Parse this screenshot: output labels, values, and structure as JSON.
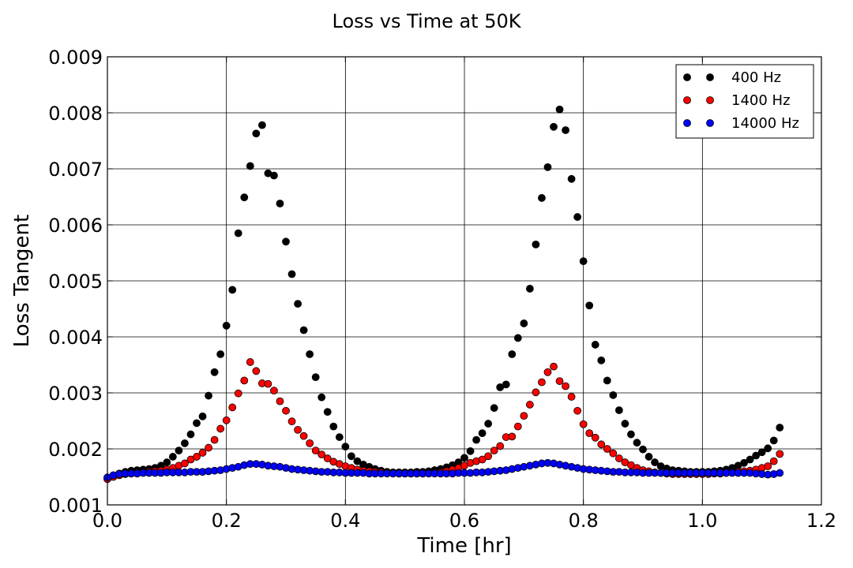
{
  "chart_data": {
    "type": "scatter",
    "title": "Loss vs Time at 50K",
    "xlabel": "Time [hr]",
    "ylabel": "Loss Tangent",
    "xlim": [
      0.0,
      1.2
    ],
    "ylim": [
      0.001,
      0.009
    ],
    "xticks": [
      "0.0",
      "0.2",
      "0.4",
      "0.6",
      "0.8",
      "1.0",
      "1.2"
    ],
    "yticks": [
      "0.001",
      "0.002",
      "0.003",
      "0.004",
      "0.005",
      "0.006",
      "0.007",
      "0.008",
      "0.009"
    ],
    "grid": true,
    "legend": "top-right",
    "series": [
      {
        "name": "400 Hz",
        "color": "#000000",
        "x": [
          0.0,
          0.01,
          0.02,
          0.03,
          0.04,
          0.05,
          0.06,
          0.07,
          0.08,
          0.09,
          0.1,
          0.11,
          0.12,
          0.13,
          0.14,
          0.15,
          0.16,
          0.17,
          0.18,
          0.19,
          0.2,
          0.21,
          0.22,
          0.23,
          0.24,
          0.25,
          0.26,
          0.27,
          0.28,
          0.29,
          0.3,
          0.31,
          0.32,
          0.33,
          0.34,
          0.35,
          0.36,
          0.37,
          0.38,
          0.39,
          0.4,
          0.41,
          0.42,
          0.43,
          0.44,
          0.45,
          0.46,
          0.47,
          0.48,
          0.49,
          0.5,
          0.51,
          0.52,
          0.53,
          0.54,
          0.55,
          0.56,
          0.57,
          0.58,
          0.59,
          0.6,
          0.61,
          0.62,
          0.63,
          0.64,
          0.65,
          0.66,
          0.67,
          0.68,
          0.69,
          0.7,
          0.71,
          0.72,
          0.73,
          0.74,
          0.75,
          0.76,
          0.77,
          0.78,
          0.79,
          0.8,
          0.81,
          0.82,
          0.83,
          0.84,
          0.85,
          0.86,
          0.87,
          0.88,
          0.89,
          0.9,
          0.91,
          0.92,
          0.93,
          0.94,
          0.95,
          0.96,
          0.97,
          0.98,
          0.99,
          1.0,
          1.01,
          1.02,
          1.03,
          1.04,
          1.05,
          1.06,
          1.07,
          1.08,
          1.09,
          1.1,
          1.11,
          1.12,
          1.13
        ],
        "y": [
          0.00148,
          0.00152,
          0.00156,
          0.00159,
          0.00161,
          0.00162,
          0.00163,
          0.00164,
          0.00166,
          0.0017,
          0.00176,
          0.00186,
          0.00197,
          0.0021,
          0.00226,
          0.00246,
          0.00258,
          0.00295,
          0.00337,
          0.00369,
          0.0042,
          0.00484,
          0.00585,
          0.00649,
          0.00705,
          0.00763,
          0.00778,
          0.00692,
          0.00688,
          0.00638,
          0.0057,
          0.00512,
          0.00459,
          0.00412,
          0.00369,
          0.00328,
          0.00292,
          0.00266,
          0.0024,
          0.00221,
          0.00204,
          0.00187,
          0.00178,
          0.00172,
          0.00168,
          0.00164,
          0.00161,
          0.00159,
          0.00158,
          0.00158,
          0.00158,
          0.00158,
          0.00159,
          0.00159,
          0.0016,
          0.00162,
          0.00164,
          0.00167,
          0.00171,
          0.00176,
          0.00184,
          0.00196,
          0.00216,
          0.00228,
          0.00245,
          0.00273,
          0.0031,
          0.00315,
          0.00369,
          0.00398,
          0.00424,
          0.00486,
          0.00565,
          0.00648,
          0.00703,
          0.00775,
          0.00806,
          0.00769,
          0.00682,
          0.00614,
          0.00535,
          0.00456,
          0.00386,
          0.00358,
          0.00322,
          0.00296,
          0.00269,
          0.00245,
          0.00226,
          0.00211,
          0.00199,
          0.00186,
          0.00176,
          0.00169,
          0.00165,
          0.00162,
          0.00161,
          0.0016,
          0.00159,
          0.00159,
          0.00159,
          0.00159,
          0.0016,
          0.00161,
          0.00163,
          0.00166,
          0.0017,
          0.00175,
          0.00181,
          0.00188,
          0.00194,
          0.00201,
          0.00215,
          0.00238
        ]
      },
      {
        "name": "1400 Hz",
        "color": "#ff0000",
        "x": [
          0.0,
          0.01,
          0.02,
          0.03,
          0.04,
          0.05,
          0.06,
          0.07,
          0.08,
          0.09,
          0.1,
          0.11,
          0.12,
          0.13,
          0.14,
          0.15,
          0.16,
          0.17,
          0.18,
          0.19,
          0.2,
          0.21,
          0.22,
          0.23,
          0.24,
          0.25,
          0.26,
          0.27,
          0.28,
          0.29,
          0.3,
          0.31,
          0.32,
          0.33,
          0.34,
          0.35,
          0.36,
          0.37,
          0.38,
          0.39,
          0.4,
          0.41,
          0.42,
          0.43,
          0.44,
          0.45,
          0.46,
          0.47,
          0.48,
          0.49,
          0.5,
          0.51,
          0.52,
          0.53,
          0.54,
          0.55,
          0.56,
          0.57,
          0.58,
          0.59,
          0.6,
          0.61,
          0.62,
          0.63,
          0.64,
          0.65,
          0.66,
          0.67,
          0.68,
          0.69,
          0.7,
          0.71,
          0.72,
          0.73,
          0.74,
          0.75,
          0.76,
          0.77,
          0.78,
          0.79,
          0.8,
          0.81,
          0.82,
          0.83,
          0.84,
          0.85,
          0.86,
          0.87,
          0.88,
          0.89,
          0.9,
          0.91,
          0.92,
          0.93,
          0.94,
          0.95,
          0.96,
          0.97,
          0.98,
          0.99,
          1.0,
          1.01,
          1.02,
          1.03,
          1.04,
          1.05,
          1.06,
          1.07,
          1.08,
          1.09,
          1.1,
          1.11,
          1.12,
          1.13
        ],
        "y": [
          0.00146,
          0.0015,
          0.00153,
          0.00155,
          0.00156,
          0.00157,
          0.00158,
          0.00159,
          0.0016,
          0.00161,
          0.00163,
          0.00166,
          0.0017,
          0.00174,
          0.00181,
          0.00186,
          0.00193,
          0.00202,
          0.00216,
          0.00236,
          0.00251,
          0.00274,
          0.00299,
          0.00322,
          0.00355,
          0.00339,
          0.00317,
          0.00316,
          0.00304,
          0.00285,
          0.00268,
          0.00249,
          0.00234,
          0.00223,
          0.0021,
          0.00197,
          0.0019,
          0.00183,
          0.00177,
          0.00173,
          0.00169,
          0.00166,
          0.00163,
          0.00161,
          0.0016,
          0.00159,
          0.00158,
          0.00157,
          0.00157,
          0.00156,
          0.00156,
          0.00156,
          0.00156,
          0.00156,
          0.00157,
          0.00157,
          0.00158,
          0.0016,
          0.00163,
          0.00166,
          0.0017,
          0.00175,
          0.00178,
          0.00181,
          0.00187,
          0.00197,
          0.00205,
          0.00221,
          0.00222,
          0.0024,
          0.00259,
          0.00279,
          0.00301,
          0.00319,
          0.00337,
          0.00347,
          0.00321,
          0.00312,
          0.00293,
          0.00268,
          0.00244,
          0.00228,
          0.0022,
          0.00208,
          0.002,
          0.00192,
          0.00183,
          0.00176,
          0.00171,
          0.00166,
          0.00162,
          0.0016,
          0.00158,
          0.00157,
          0.00156,
          0.00155,
          0.00155,
          0.00155,
          0.00155,
          0.00155,
          0.00155,
          0.00155,
          0.00156,
          0.00156,
          0.00157,
          0.00158,
          0.00159,
          0.0016,
          0.00161,
          0.00163,
          0.00166,
          0.00169,
          0.00178,
          0.00191
        ]
      },
      {
        "name": "14000 Hz",
        "color": "#0000ff",
        "x": [
          0.0,
          0.01,
          0.02,
          0.03,
          0.04,
          0.05,
          0.06,
          0.07,
          0.08,
          0.09,
          0.1,
          0.11,
          0.12,
          0.13,
          0.14,
          0.15,
          0.16,
          0.17,
          0.18,
          0.19,
          0.2,
          0.21,
          0.22,
          0.23,
          0.24,
          0.25,
          0.26,
          0.27,
          0.28,
          0.29,
          0.3,
          0.31,
          0.32,
          0.33,
          0.34,
          0.35,
          0.36,
          0.37,
          0.38,
          0.39,
          0.4,
          0.41,
          0.42,
          0.43,
          0.44,
          0.45,
          0.46,
          0.47,
          0.48,
          0.49,
          0.5,
          0.51,
          0.52,
          0.53,
          0.54,
          0.55,
          0.56,
          0.57,
          0.58,
          0.59,
          0.6,
          0.61,
          0.62,
          0.63,
          0.64,
          0.65,
          0.66,
          0.67,
          0.68,
          0.69,
          0.7,
          0.71,
          0.72,
          0.73,
          0.74,
          0.75,
          0.76,
          0.77,
          0.78,
          0.79,
          0.8,
          0.81,
          0.82,
          0.83,
          0.84,
          0.85,
          0.86,
          0.87,
          0.88,
          0.89,
          0.9,
          0.91,
          0.92,
          0.93,
          0.94,
          0.95,
          0.96,
          0.97,
          0.98,
          0.99,
          1.0,
          1.01,
          1.02,
          1.03,
          1.04,
          1.05,
          1.06,
          1.07,
          1.08,
          1.09,
          1.1,
          1.11,
          1.12,
          1.13
        ],
        "y": [
          0.00149,
          0.00153,
          0.00155,
          0.00156,
          0.00156,
          0.00156,
          0.00157,
          0.00157,
          0.00157,
          0.00157,
          0.00158,
          0.00158,
          0.00158,
          0.00158,
          0.00159,
          0.00159,
          0.00159,
          0.0016,
          0.00161,
          0.00162,
          0.00164,
          0.00166,
          0.00168,
          0.00171,
          0.00173,
          0.00173,
          0.00172,
          0.0017,
          0.00169,
          0.00168,
          0.00166,
          0.00164,
          0.00163,
          0.00162,
          0.00161,
          0.0016,
          0.00159,
          0.00159,
          0.00158,
          0.00158,
          0.00157,
          0.00157,
          0.00157,
          0.00157,
          0.00156,
          0.00156,
          0.00156,
          0.00156,
          0.00156,
          0.00156,
          0.00156,
          0.00156,
          0.00156,
          0.00156,
          0.00156,
          0.00156,
          0.00156,
          0.00156,
          0.00156,
          0.00157,
          0.00157,
          0.00157,
          0.00158,
          0.00158,
          0.00159,
          0.0016,
          0.00161,
          0.00162,
          0.00164,
          0.00166,
          0.00168,
          0.0017,
          0.00172,
          0.00174,
          0.00175,
          0.00174,
          0.00172,
          0.0017,
          0.00168,
          0.00166,
          0.00164,
          0.00163,
          0.00162,
          0.00161,
          0.0016,
          0.00159,
          0.00159,
          0.00158,
          0.00158,
          0.00158,
          0.00157,
          0.00157,
          0.00157,
          0.00157,
          0.00157,
          0.00157,
          0.00157,
          0.00157,
          0.00157,
          0.00157,
          0.00157,
          0.00157,
          0.00157,
          0.00157,
          0.00157,
          0.00157,
          0.00157,
          0.00157,
          0.00157,
          0.00156,
          0.00155,
          0.00154,
          0.00155,
          0.00157
        ]
      }
    ]
  }
}
